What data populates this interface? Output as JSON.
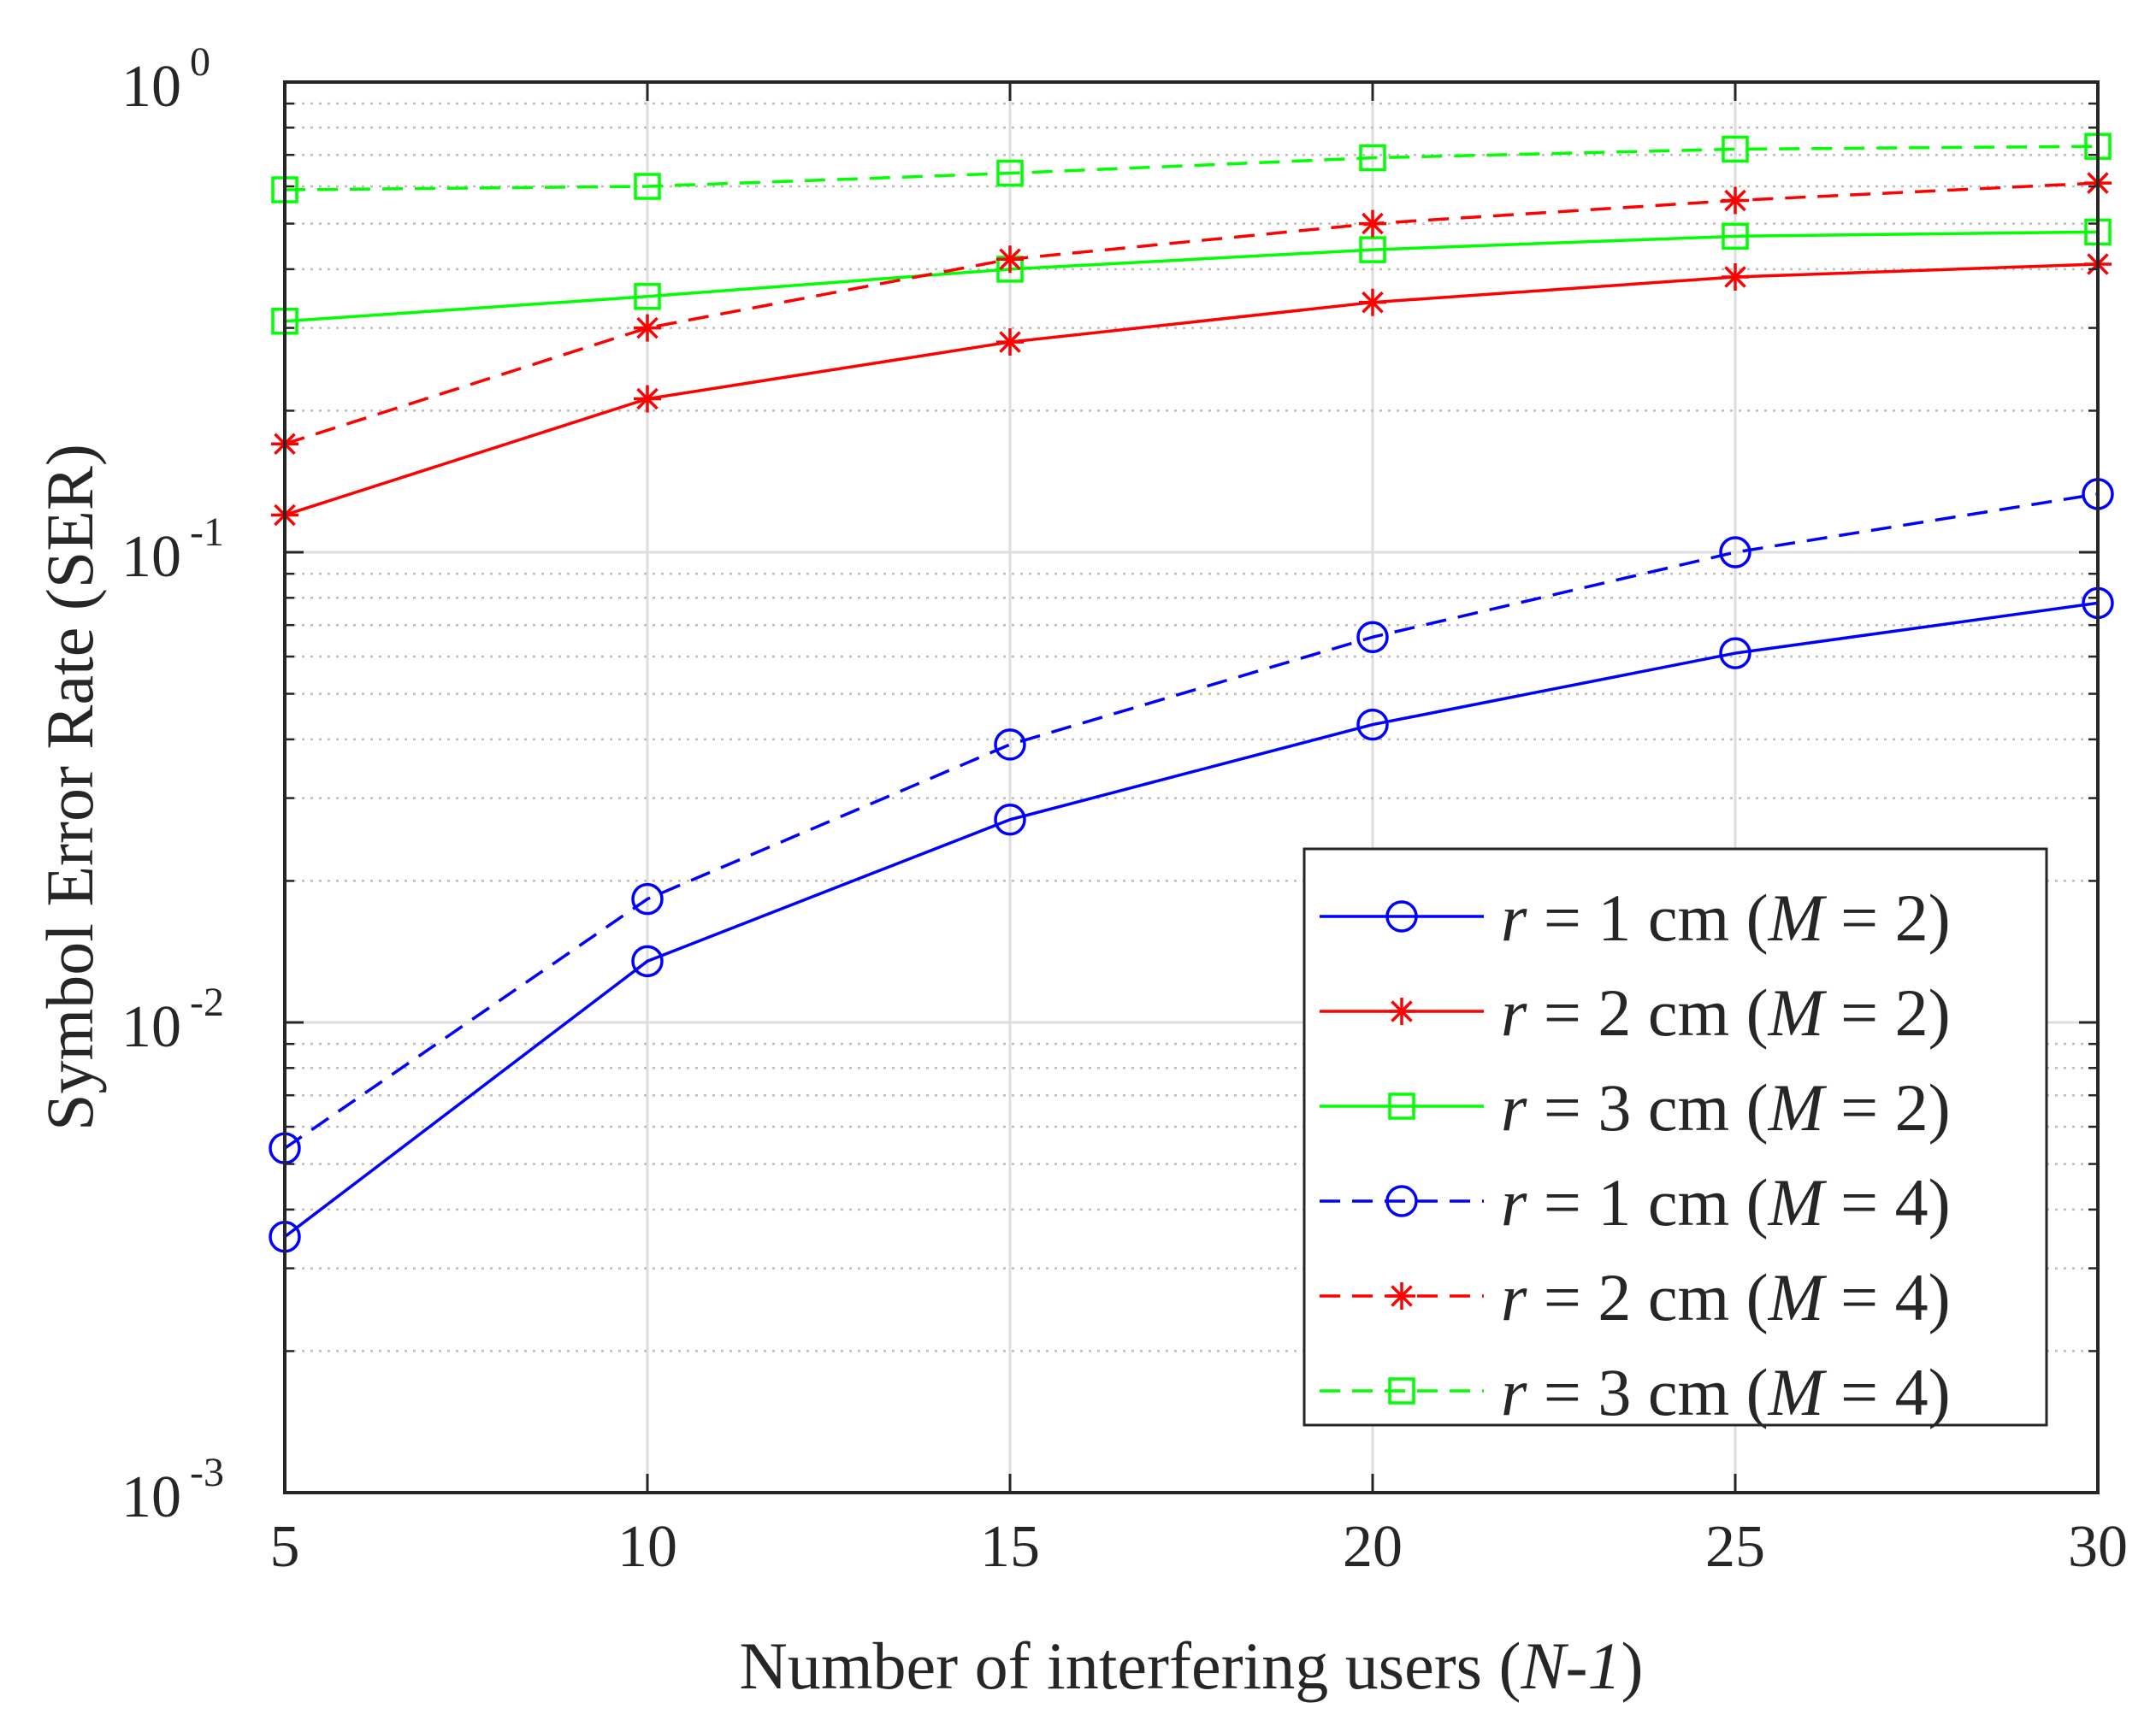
{
  "chart_data": {
    "type": "line",
    "title": "",
    "xlabel": {
      "prefix": "Number of interfering users (",
      "italic": "N-1",
      "suffix": ")"
    },
    "ylabel": "Symbol Error Rate (SER)",
    "xlim": [
      5,
      30
    ],
    "ylim": [
      0.001,
      1
    ],
    "yscale": "log",
    "grid": true,
    "x": [
      5,
      10,
      15,
      20,
      25,
      30
    ],
    "xtick_labels": [
      "5",
      "10",
      "15",
      "20",
      "25",
      "30"
    ],
    "ytick_labels": [
      {
        "base": "10",
        "exp": "0"
      },
      {
        "base": "10",
        "exp": "-1"
      },
      {
        "base": "10",
        "exp": "-2"
      },
      {
        "base": "10",
        "exp": "-3"
      }
    ],
    "legend_position": "bottom-right",
    "series": [
      {
        "name": "r = 1 cm (M = 2)",
        "var": "r",
        "rest": " = 1 cm (",
        "mvar": "M",
        "mval": " = 2)",
        "color": "#0000ff",
        "linestyle": "solid",
        "marker": "circle",
        "values": [
          0.0035,
          0.0135,
          0.027,
          0.043,
          0.061,
          0.078
        ]
      },
      {
        "name": "r = 2 cm (M = 2)",
        "var": "r",
        "rest": " = 2 cm (",
        "mvar": "M",
        "mval": " = 2)",
        "color": "#ff0000",
        "linestyle": "solid",
        "marker": "star",
        "values": [
          0.12,
          0.212,
          0.28,
          0.34,
          0.385,
          0.41
        ]
      },
      {
        "name": "r = 3 cm (M = 2)",
        "var": "r",
        "rest": " = 3 cm (",
        "mvar": "M",
        "mval": " = 2)",
        "color": "#00ff00",
        "linestyle": "solid",
        "marker": "square",
        "values": [
          0.31,
          0.35,
          0.4,
          0.44,
          0.47,
          0.48
        ]
      },
      {
        "name": "r = 1 cm (M = 4)",
        "var": "r",
        "rest": " = 1 cm (",
        "mvar": "M",
        "mval": " = 4)",
        "color": "#0000ff",
        "linestyle": "dashed",
        "marker": "circle",
        "values": [
          0.0054,
          0.0183,
          0.039,
          0.066,
          0.1,
          0.133
        ]
      },
      {
        "name": "r = 2 cm (M = 4)",
        "var": "r",
        "rest": " = 2 cm (",
        "mvar": "M",
        "mval": " = 4)",
        "color": "#ff0000",
        "linestyle": "dashed",
        "marker": "star",
        "values": [
          0.17,
          0.3,
          0.42,
          0.5,
          0.56,
          0.61
        ]
      },
      {
        "name": "r = 3 cm (M = 4)",
        "var": "r",
        "rest": " = 3 cm (",
        "mvar": "M",
        "mval": " = 4)",
        "color": "#00ff00",
        "linestyle": "dashed",
        "marker": "square",
        "values": [
          0.59,
          0.6,
          0.64,
          0.69,
          0.72,
          0.73
        ]
      }
    ]
  }
}
